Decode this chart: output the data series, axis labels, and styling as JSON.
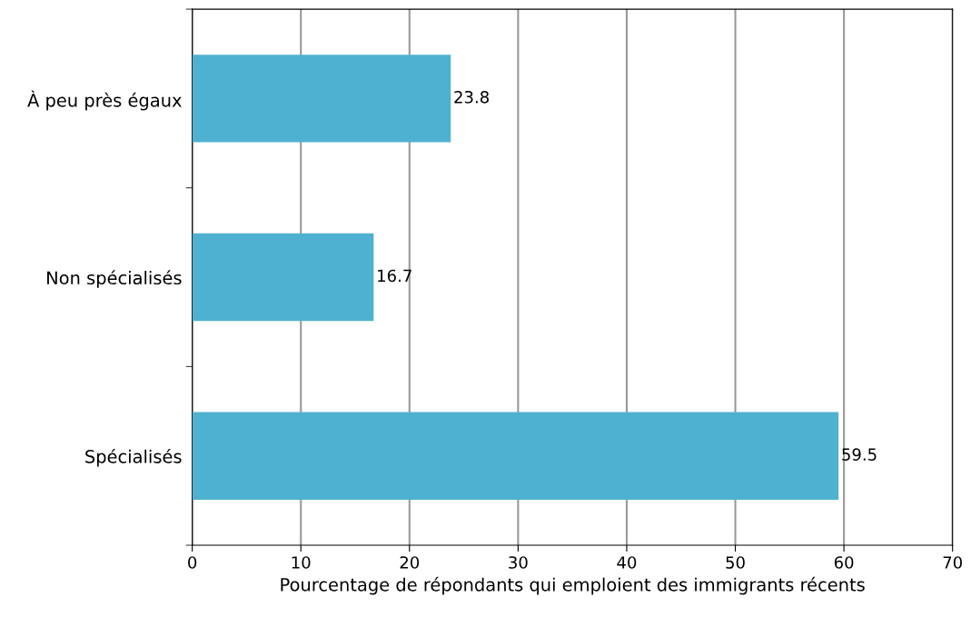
{
  "chart_data": {
    "type": "bar",
    "orientation": "horizontal",
    "categories": [
      "À peu près égaux",
      "Non spécialisés",
      "Spécialisés"
    ],
    "values": [
      23.8,
      16.7,
      59.5
    ],
    "color": "#4fb1d0",
    "xlabel": "Pourcentage de répondants qui emploient des immigrants récents",
    "xlim": [
      0,
      70
    ],
    "xticks": [
      0,
      10,
      20,
      30,
      40,
      50,
      60,
      70
    ],
    "grid": "x",
    "data_labels": true,
    "legend": false
  }
}
